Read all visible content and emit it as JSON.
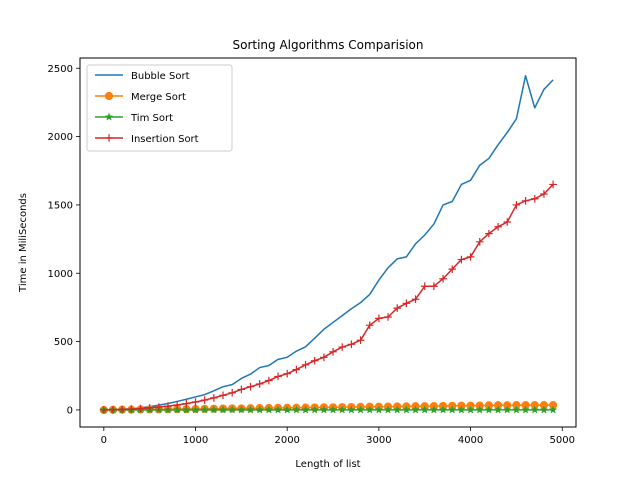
{
  "chart_data": {
    "type": "line",
    "title": "Sorting Algorithms Comparision",
    "xlabel": "Length of list",
    "ylabel": "Time in MiliSeconds",
    "xlim": [
      -260,
      5150
    ],
    "ylim": [
      -125,
      2575
    ],
    "xticks": [
      0,
      1000,
      2000,
      3000,
      4000,
      5000
    ],
    "yticks": [
      0,
      500,
      1000,
      1500,
      2000,
      2500
    ],
    "grid": false,
    "legend_position": "top-left",
    "x": [
      0,
      100,
      200,
      300,
      400,
      500,
      600,
      700,
      800,
      900,
      1000,
      1100,
      1200,
      1300,
      1400,
      1500,
      1600,
      1700,
      1800,
      1900,
      2000,
      2100,
      2200,
      2300,
      2400,
      2500,
      2600,
      2700,
      2800,
      2900,
      3000,
      3100,
      3200,
      3300,
      3400,
      3500,
      3600,
      3700,
      3800,
      3900,
      4000,
      4100,
      4200,
      4300,
      4400,
      4500,
      4600,
      4700,
      4800,
      4900
    ],
    "series": [
      {
        "name": "Bubble Sort",
        "color": "#1f77b4",
        "marker": "none",
        "values": [
          0,
          1,
          4,
          9,
          15,
          24,
          35,
          47,
          62,
          78,
          95,
          112,
          140,
          170,
          185,
          230,
          262,
          310,
          325,
          370,
          385,
          430,
          462,
          525,
          590,
          640,
          690,
          740,
          785,
          845,
          950,
          1040,
          1105,
          1120,
          1215,
          1280,
          1360,
          1500,
          1525,
          1650,
          1680,
          1790,
          1840,
          1940,
          2030,
          2130,
          2445,
          2210,
          2345,
          2415
        ]
      },
      {
        "name": "Merge Sort",
        "color": "#ff7f0e",
        "marker": "circle",
        "values": [
          0,
          1,
          2,
          2,
          3,
          4,
          4,
          5,
          6,
          6,
          7,
          8,
          9,
          10,
          11,
          11,
          12,
          13,
          14,
          15,
          15,
          16,
          17,
          18,
          19,
          19,
          20,
          21,
          22,
          23,
          23,
          24,
          25,
          26,
          27,
          27,
          28,
          29,
          30,
          31,
          31,
          32,
          33,
          34,
          34,
          35,
          35,
          35,
          35,
          35
        ]
      },
      {
        "name": "Tim Sort",
        "color": "#2ca02c",
        "marker": "star",
        "values": [
          0,
          0,
          0,
          0,
          0,
          0,
          0,
          0,
          0,
          0,
          0,
          0,
          0,
          0,
          0,
          0,
          0,
          0,
          0,
          0,
          0,
          0,
          0,
          0,
          0,
          0,
          0,
          0,
          0,
          0,
          0,
          0,
          0,
          0,
          0,
          0,
          0,
          0,
          0,
          0,
          0,
          0,
          0,
          0,
          0,
          0,
          0,
          0,
          0,
          0
        ]
      },
      {
        "name": "Insertion Sort",
        "color": "#d62728",
        "marker": "plus",
        "values": [
          0,
          1,
          3,
          6,
          10,
          15,
          21,
          28,
          36,
          46,
          58,
          72,
          88,
          107,
          125,
          150,
          170,
          190,
          215,
          245,
          265,
          295,
          330,
          360,
          385,
          425,
          460,
          480,
          510,
          620,
          670,
          680,
          745,
          780,
          810,
          905,
          905,
          960,
          1030,
          1100,
          1120,
          1230,
          1290,
          1340,
          1375,
          1500,
          1530,
          1545,
          1580,
          1650
        ]
      }
    ]
  }
}
